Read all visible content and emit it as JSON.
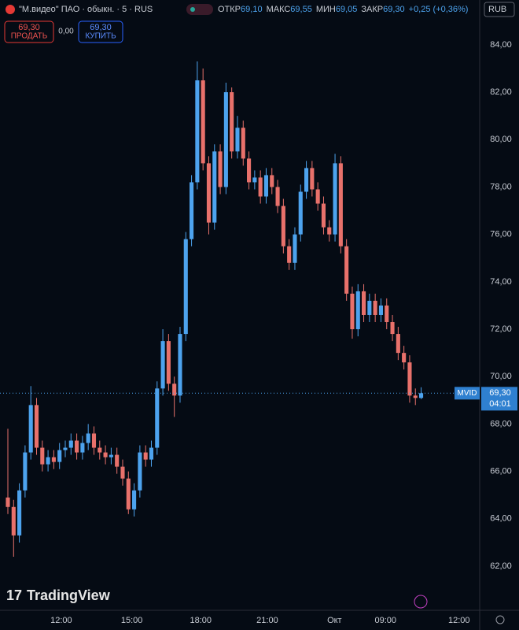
{
  "header": {
    "symbol": "\"М.видео\" ПАО · обыкн. · 5 · RUS",
    "ohlc": [
      {
        "label": "ОТКР",
        "value": "69,10"
      },
      {
        "label": "МАКС",
        "value": "69,55"
      },
      {
        "label": "МИН",
        "value": "69,05"
      },
      {
        "label": "ЗАКР",
        "value": "69,30"
      }
    ],
    "change": "+0,25 (+0,36%)",
    "currency": "RUB"
  },
  "trade": {
    "sell_price": "69,30",
    "sell_label": "ПРОДАТЬ",
    "spread": "0,00",
    "buy_price": "69,30",
    "buy_label": "КУПИТЬ"
  },
  "price_tag": {
    "symbol": "MVID",
    "price": "69,30",
    "countdown": "04:01"
  },
  "logo": "TradingView",
  "chart_data": {
    "type": "candlestick",
    "up_color": "#4da3ee",
    "down_color": "#e8716b",
    "open": [
      64.9,
      64.5,
      63.3,
      65.2,
      66.8,
      68.8,
      67.0,
      66.3,
      66.6,
      66.4,
      66.9,
      67.0,
      67.3,
      66.8,
      67.2,
      67.6,
      67.0,
      66.8,
      66.6,
      66.7,
      66.2,
      65.7,
      64.4,
      65.2,
      66.8,
      66.5,
      67.0,
      69.5,
      71.5,
      69.7,
      69.2,
      71.8,
      75.8,
      78.2,
      82.5,
      79.0,
      76.5,
      79.5,
      78.0,
      82.0,
      79.5,
      80.5,
      79.2,
      78.2,
      78.4,
      77.6,
      78.5,
      78.0,
      77.2,
      75.5,
      74.8,
      76.0,
      77.8,
      78.8,
      77.9,
      77.3,
      76.3,
      76.0,
      79.0,
      75.5,
      73.5,
      72.0,
      73.6,
      72.6,
      73.2,
      72.6,
      73.0,
      72.3,
      71.8,
      71.0,
      70.6,
      69.2,
      69.1
    ],
    "high": [
      67.8,
      64.8,
      65.5,
      67.1,
      69.6,
      69.1,
      67.3,
      66.9,
      66.9,
      67.2,
      67.3,
      67.6,
      67.6,
      67.5,
      68.0,
      67.9,
      67.3,
      67.1,
      67.0,
      67.0,
      66.5,
      66.0,
      65.5,
      67.1,
      67.1,
      67.3,
      69.8,
      72.0,
      71.8,
      70.0,
      72.1,
      76.1,
      78.5,
      83.3,
      83.0,
      79.3,
      79.8,
      79.8,
      82.4,
      82.2,
      81.0,
      80.8,
      79.5,
      78.7,
      78.7,
      78.8,
      78.8,
      78.3,
      77.5,
      75.8,
      76.3,
      78.1,
      79.1,
      79.1,
      78.2,
      77.6,
      76.6,
      79.4,
      79.3,
      75.8,
      73.8,
      73.9,
      73.9,
      73.5,
      73.5,
      73.3,
      73.3,
      72.6,
      72.1,
      71.3,
      70.9,
      69.5,
      69.55
    ],
    "low": [
      64.2,
      62.4,
      63.0,
      64.9,
      66.5,
      66.7,
      66.0,
      66.0,
      66.1,
      66.1,
      66.6,
      66.7,
      66.5,
      66.5,
      66.9,
      66.7,
      66.5,
      66.3,
      66.3,
      65.9,
      65.4,
      64.2,
      64.1,
      64.9,
      66.2,
      66.2,
      66.7,
      69.2,
      69.4,
      68.3,
      68.9,
      71.5,
      75.5,
      77.9,
      78.7,
      76.0,
      76.2,
      77.7,
      77.7,
      79.2,
      79.2,
      78.9,
      77.9,
      77.9,
      77.3,
      77.3,
      77.7,
      76.9,
      75.2,
      74.5,
      74.5,
      75.7,
      77.5,
      77.6,
      77.0,
      76.0,
      75.7,
      75.7,
      75.2,
      73.2,
      71.6,
      71.7,
      72.3,
      72.3,
      72.3,
      72.3,
      72.0,
      71.5,
      70.7,
      70.3,
      68.9,
      68.8,
      69.05
    ],
    "close": [
      64.5,
      63.3,
      65.2,
      66.8,
      68.8,
      67.0,
      66.3,
      66.6,
      66.4,
      66.9,
      67.0,
      67.3,
      66.8,
      67.2,
      67.6,
      67.0,
      66.8,
      66.6,
      66.7,
      66.2,
      65.7,
      64.4,
      65.2,
      66.8,
      66.5,
      67.0,
      69.5,
      71.5,
      69.7,
      69.2,
      71.8,
      75.8,
      78.2,
      82.5,
      79.0,
      76.5,
      79.5,
      78.0,
      82.0,
      79.5,
      80.5,
      79.2,
      78.2,
      78.4,
      77.6,
      78.5,
      78.0,
      77.2,
      75.5,
      74.8,
      76.0,
      77.8,
      78.8,
      77.9,
      77.3,
      76.3,
      76.0,
      79.0,
      75.5,
      73.5,
      72.0,
      73.6,
      72.6,
      73.2,
      72.6,
      73.0,
      72.3,
      71.8,
      71.0,
      70.6,
      69.2,
      69.1,
      69.3
    ],
    "xlim": [
      -1.37,
      82.2
    ],
    "xticks": [
      {
        "value": 9.3,
        "label": "12:00"
      },
      {
        "value": 21.6,
        "label": "15:00"
      },
      {
        "value": 33.6,
        "label": "18:00"
      },
      {
        "value": 45.2,
        "label": "21:00"
      },
      {
        "value": 56.9,
        "label": "Окт"
      },
      {
        "value": 65.8,
        "label": "09:00"
      },
      {
        "value": 78.6,
        "label": "12:00"
      }
    ],
    "ylim": [
      60.14,
      85.89
    ],
    "yticks": [
      {
        "value": 62,
        "label": "62,00"
      },
      {
        "value": 64,
        "label": "64,00"
      },
      {
        "value": 66,
        "label": "66,00"
      },
      {
        "value": 68,
        "label": "68,00"
      },
      {
        "value": 70,
        "label": "70,00"
      },
      {
        "value": 72,
        "label": "72,00"
      },
      {
        "value": 74,
        "label": "74,00"
      },
      {
        "value": 76,
        "label": "76,00"
      },
      {
        "value": 78,
        "label": "78,00"
      },
      {
        "value": 80,
        "label": "80,00"
      },
      {
        "value": 82,
        "label": "82,00"
      },
      {
        "value": 84,
        "label": "84,00"
      }
    ]
  }
}
